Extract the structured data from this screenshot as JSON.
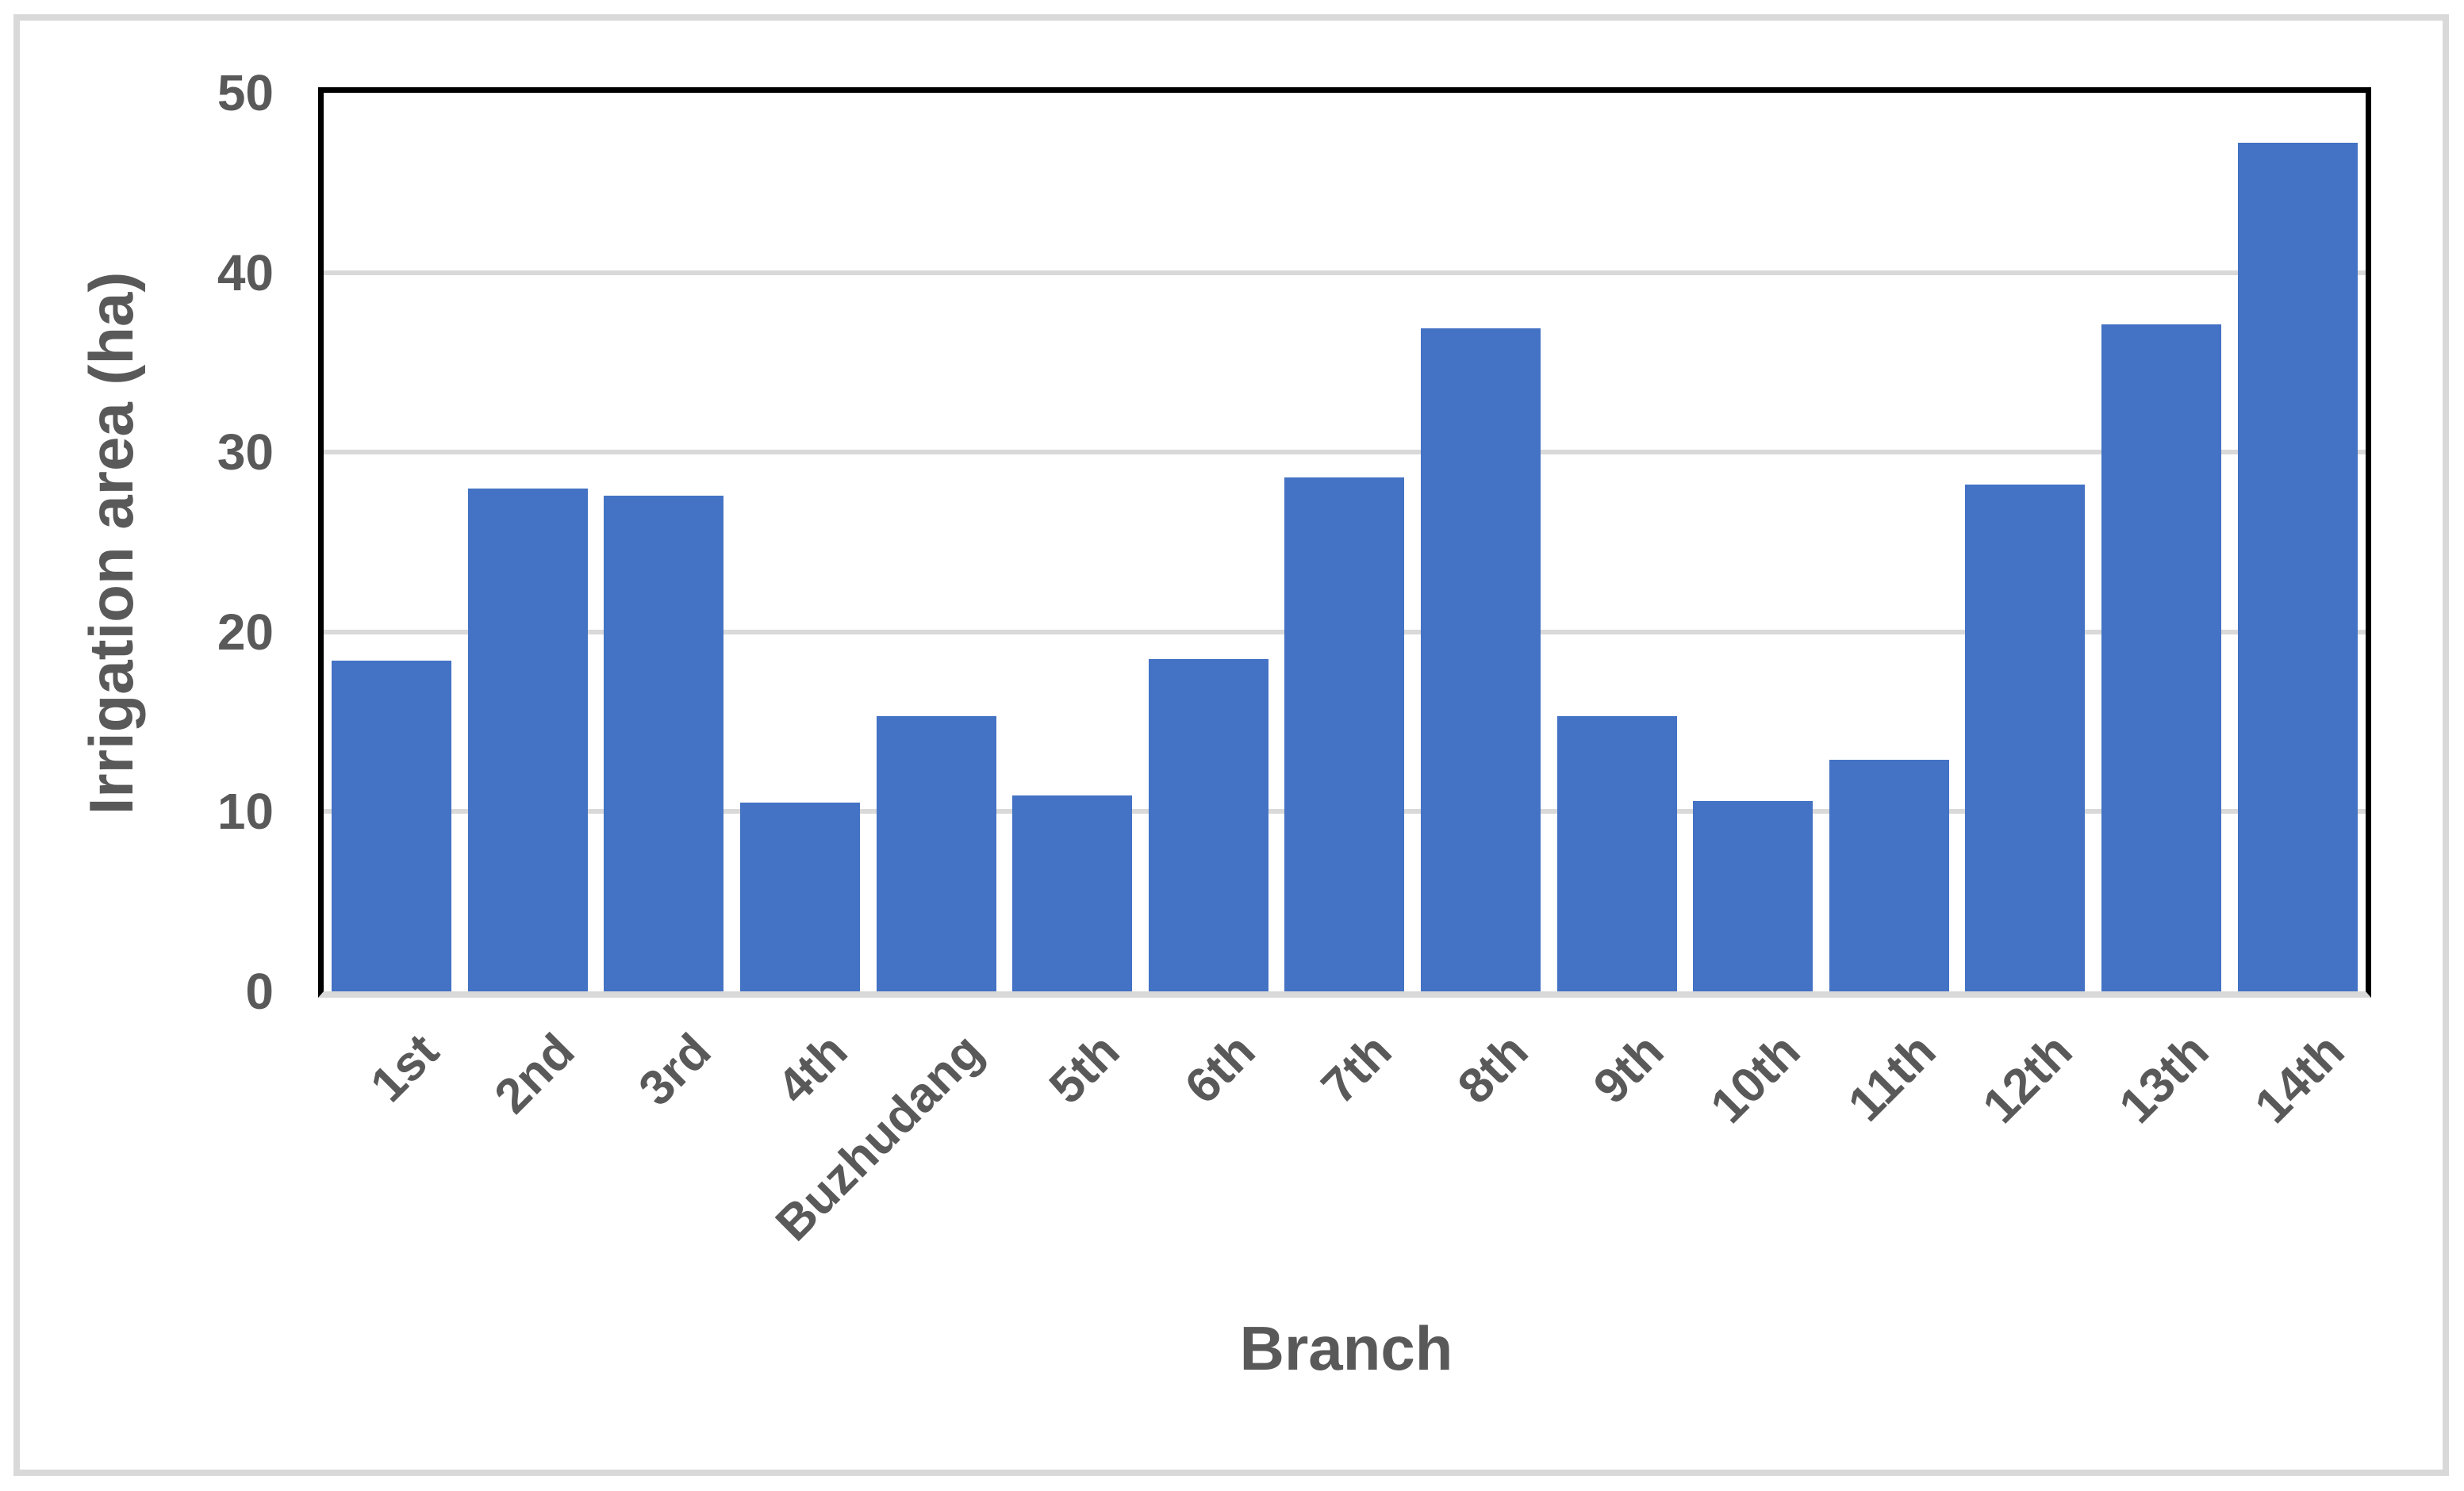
{
  "figure": {
    "background_color": "#FFFFFF",
    "outer_border_color": "#D9D9D9"
  },
  "chart_data": {
    "type": "bar",
    "title": "",
    "xlabel": "Branch",
    "ylabel": "Irrigation area (ha)",
    "categories": [
      "1st",
      "2nd",
      "3rd",
      "4th",
      "Buzhudang",
      "5th",
      "6th",
      "7th",
      "8th",
      "9th",
      "10th",
      "11th",
      "12th",
      "13th",
      "14th"
    ],
    "values": [
      18.4,
      28.0,
      27.6,
      10.5,
      15.3,
      10.9,
      18.5,
      28.6,
      36.9,
      15.3,
      10.6,
      12.9,
      28.2,
      37.1,
      47.2
    ],
    "series_name": "Irrigation area (ha)",
    "ylim": [
      0,
      50
    ],
    "yticks": [
      0,
      10,
      20,
      30,
      40,
      50
    ],
    "grid": true,
    "legend": false,
    "x_tick_rotation_deg": 45,
    "bar_color": "#4472C4",
    "text_color": "#595959",
    "gridline_color": "#D9D9D9",
    "plot_border_color": "#000000",
    "baseline_color": "#D9D9D9"
  }
}
